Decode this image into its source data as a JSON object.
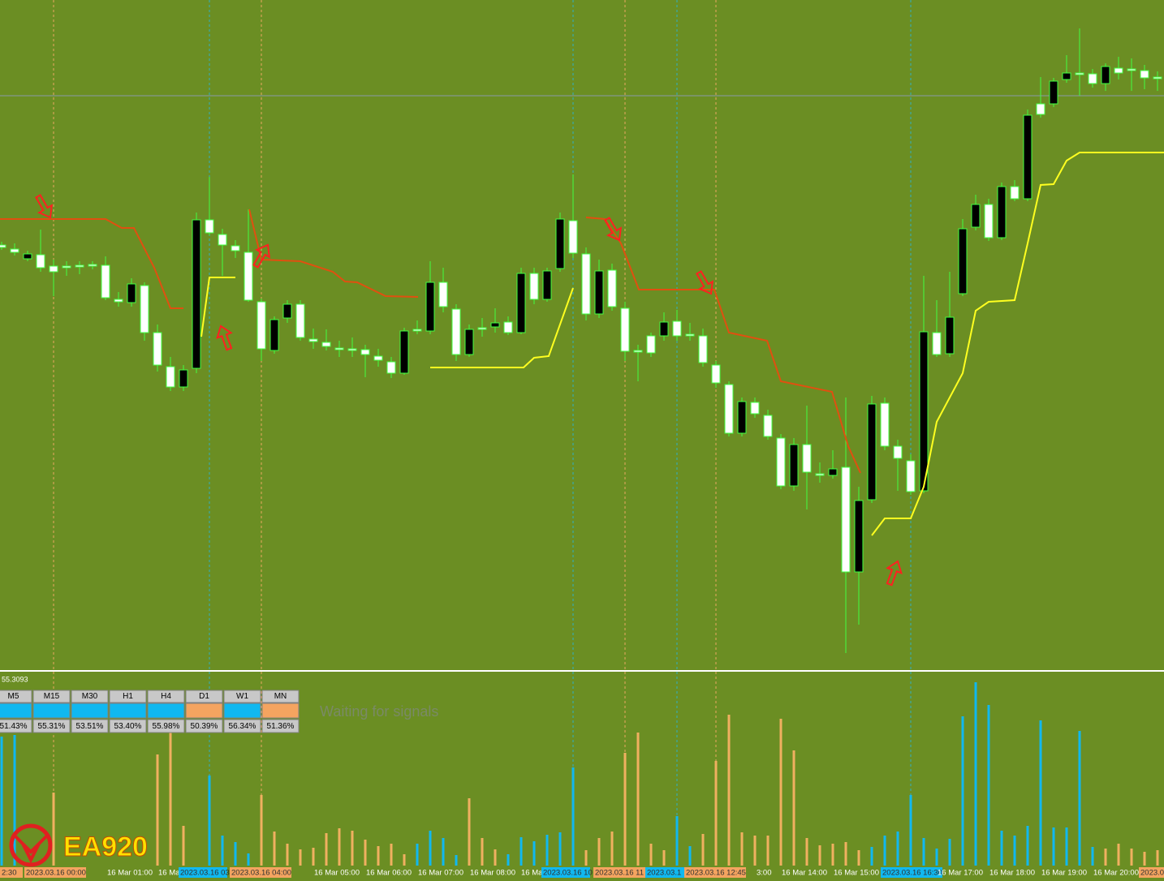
{
  "indicator_value": "55.3093",
  "timeframes": {
    "headers": [
      "M5",
      "M15",
      "M30",
      "H1",
      "H4",
      "D1",
      "W1",
      "MN"
    ],
    "values": [
      "51.43%",
      "55.31%",
      "53.51%",
      "53.40%",
      "55.98%",
      "50.39%",
      "56.34%",
      "51.36%"
    ]
  },
  "status": "Waiting for signals",
  "logo": "EA920",
  "time_labels": [
    "2:30",
    "2023.03.16 00:00",
    "16 Mar 01:00",
    "16 Ma",
    "2023.03.16 03:",
    "2023.03.16 04:00",
    "16 Mar 05:00",
    "16 Mar 06:00",
    "16 Mar 07:00",
    "16 Mar 08:00",
    "16 Ma",
    "2023.03.16 10",
    "2023.03.16 11",
    "2023.03.1",
    "2023.03.16 12:45",
    "3:00",
    "16 Mar 14:00",
    "16 Mar 15:00",
    "2023.03.16 16:30",
    "16 Mar 17:00",
    "16 Mar 18:00",
    "16 Mar 19:00",
    "16 Mar 20:00",
    "2023.0"
  ]
}
